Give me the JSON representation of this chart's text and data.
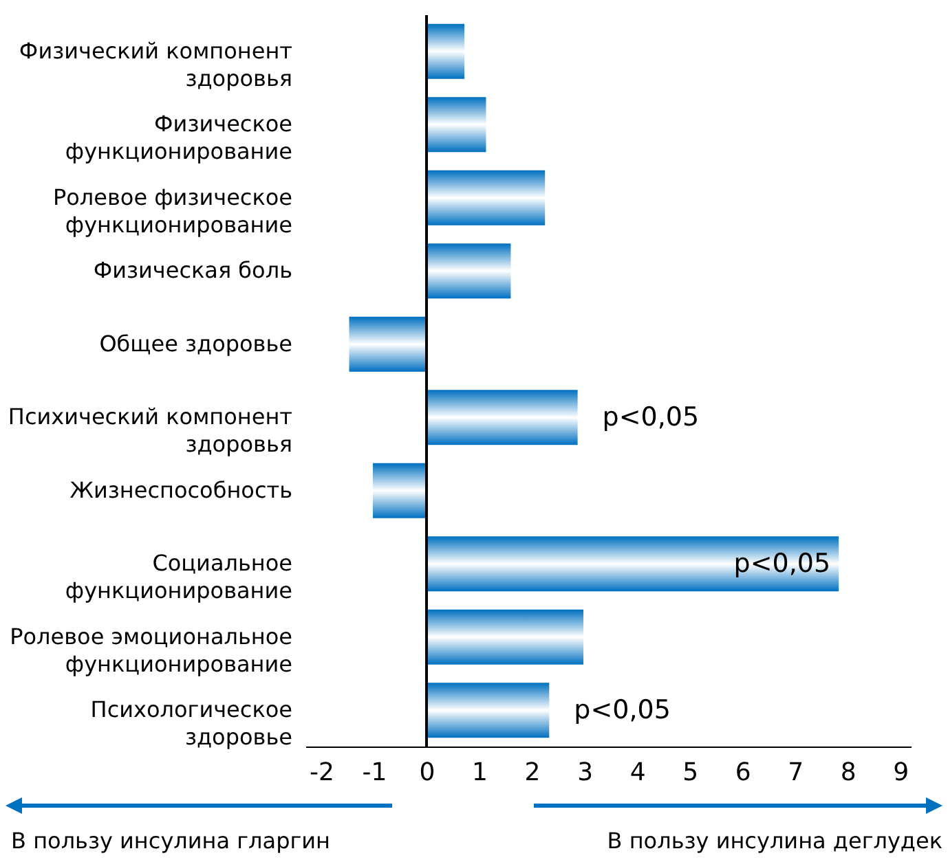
{
  "chart_data": {
    "type": "bar",
    "orientation": "horizontal",
    "categories": [
      "Физический компонент здоровья",
      "Физическое функционирование",
      "Ролевое физическое функционирование",
      "Физическая боль",
      "Общее здоровье",
      "Психический компонент здоровья",
      "Жизнеспособность",
      "Социальное функционирование",
      "Ролевое эмоциональное функционирование",
      "Психологическое здоровье"
    ],
    "values": [
      0.72,
      1.13,
      2.25,
      1.6,
      -1.47,
      2.87,
      -1.02,
      7.83,
      2.98,
      2.33
    ],
    "color": "#0070c0",
    "xlim": [
      -2.3,
      9.2
    ],
    "xticks": [
      -2,
      -1,
      0,
      1,
      2,
      3,
      4,
      5,
      6,
      7,
      8,
      9
    ],
    "value_labels": [
      null,
      null,
      null,
      null,
      null,
      "p<0,05",
      null,
      "p<0,05",
      null,
      "p<0,05"
    ],
    "ref_lines": [
      {
        "axis": "x",
        "value": 0
      }
    ],
    "annotations": [
      "В пользу инсулина гларгин",
      "В пользу инсулина деглудек"
    ],
    "grid": false
  }
}
